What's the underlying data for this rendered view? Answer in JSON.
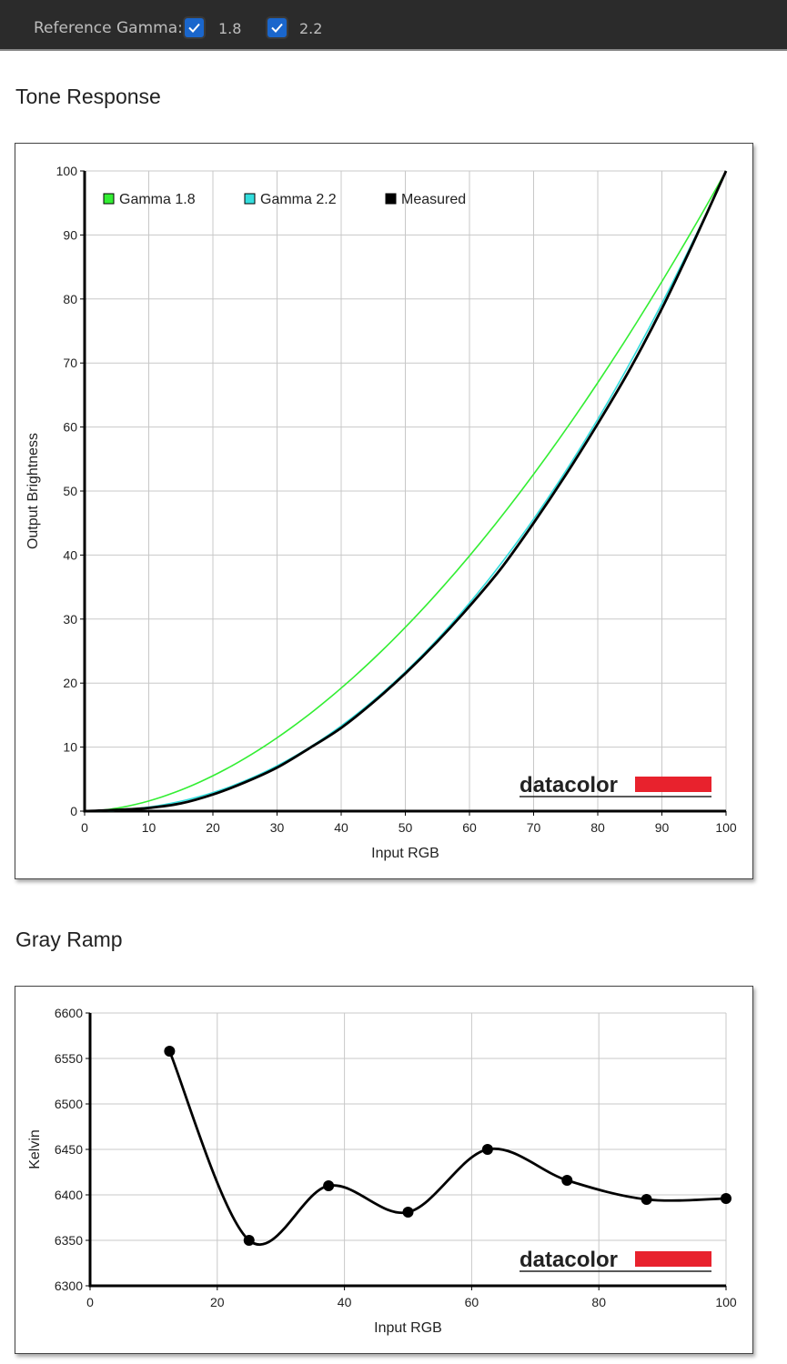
{
  "toolbar": {
    "reference_label": "Reference Gamma:",
    "options": [
      {
        "label": "1.8",
        "checked": true
      },
      {
        "label": "2.2",
        "checked": true
      }
    ],
    "checkbox_color": "#1a66cc"
  },
  "chart_data": [
    {
      "title": "Tone Response",
      "type": "line",
      "xlabel": "Input RGB",
      "ylabel": "Output Brightness",
      "xlim": [
        0,
        100
      ],
      "ylim": [
        0,
        100
      ],
      "xticks": [
        0,
        10,
        20,
        30,
        40,
        50,
        60,
        70,
        80,
        90,
        100
      ],
      "yticks": [
        0,
        10,
        20,
        30,
        40,
        50,
        60,
        70,
        80,
        90,
        100
      ],
      "grid": true,
      "legend": "top-left",
      "watermark": "datacolor",
      "series": [
        {
          "name": "Gamma 1.8",
          "color": "#33ee33",
          "gamma": 1.8,
          "x": [
            0,
            10,
            20,
            30,
            40,
            50,
            60,
            70,
            80,
            90,
            100
          ],
          "y": [
            0,
            1.6,
            5.5,
            11.5,
            19.2,
            28.7,
            39.9,
            52.6,
            66.9,
            82.7,
            100
          ]
        },
        {
          "name": "Gamma 2.2",
          "color": "#33dddd",
          "gamma": 2.2,
          "x": [
            0,
            10,
            20,
            30,
            40,
            50,
            60,
            70,
            80,
            90,
            100
          ],
          "y": [
            0,
            0.6,
            2.9,
            7.1,
            13.3,
            21.8,
            32.5,
            45.6,
            61.2,
            79.3,
            100
          ]
        },
        {
          "name": "Measured",
          "color": "#000000",
          "x": [
            0,
            5,
            10,
            15,
            20,
            25,
            30,
            35,
            40,
            45,
            50,
            55,
            60,
            65,
            70,
            75,
            80,
            85,
            90,
            95,
            100
          ],
          "y": [
            0,
            0.2,
            0.5,
            1.2,
            2.6,
            4.5,
            6.8,
            9.8,
            13.0,
            17.0,
            21.5,
            26.5,
            32.0,
            38.0,
            45.0,
            52.5,
            60.5,
            69.0,
            78.5,
            89.0,
            100
          ]
        }
      ]
    },
    {
      "title": "Gray Ramp",
      "type": "line",
      "xlabel": "Input RGB",
      "ylabel": "Kelvin",
      "xlim": [
        0,
        100
      ],
      "ylim": [
        6300,
        6600
      ],
      "xticks": [
        0,
        20,
        40,
        60,
        80,
        100
      ],
      "yticks": [
        6300,
        6350,
        6400,
        6450,
        6500,
        6550,
        6600
      ],
      "grid": true,
      "watermark": "datacolor",
      "series": [
        {
          "name": "",
          "color": "#000000",
          "x": [
            12.5,
            25,
            37.5,
            50,
            62.5,
            75,
            87.5,
            100
          ],
          "y": [
            6558,
            6350,
            6410,
            6381,
            6450,
            6416,
            6395,
            6396
          ]
        }
      ]
    }
  ]
}
